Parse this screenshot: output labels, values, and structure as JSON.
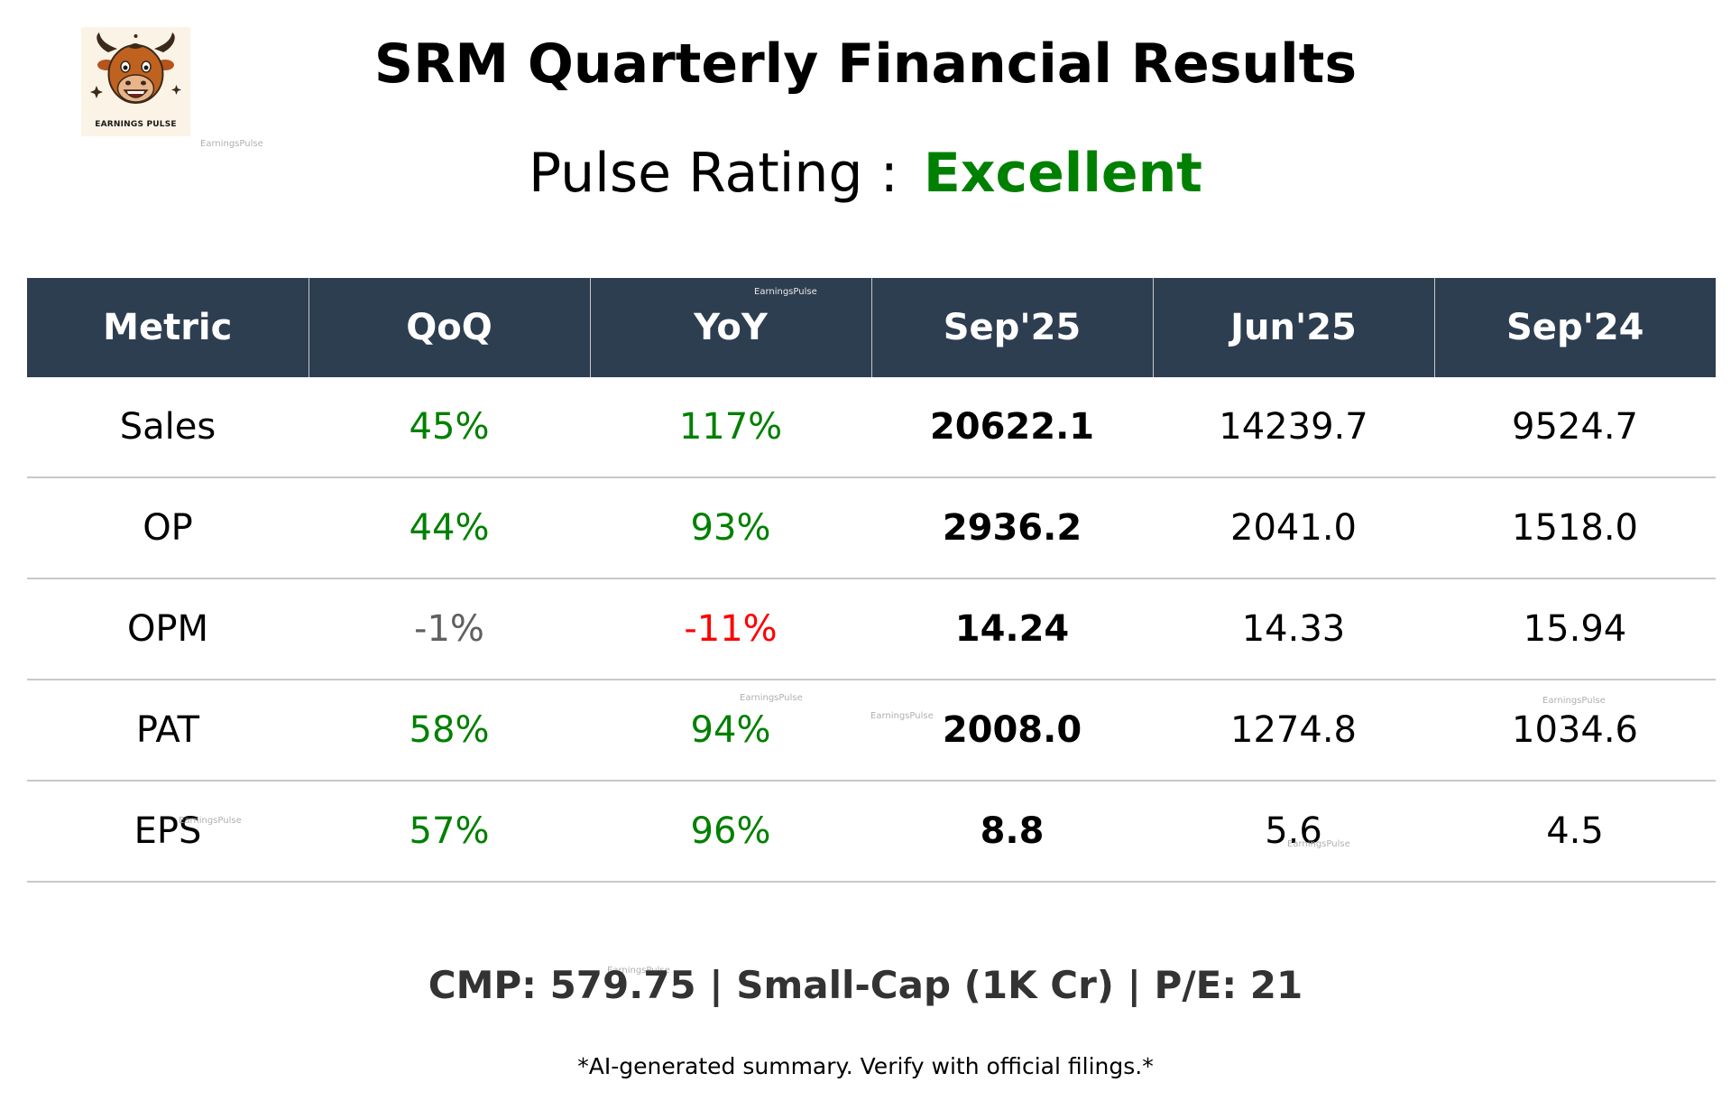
{
  "logo": {
    "text": "EARNINGS PULSE",
    "icon": "bull-mascot-icon"
  },
  "title": "SRM Quarterly Financial Results",
  "rating": {
    "label": "Pulse Rating :",
    "value": "Excellent",
    "value_color": "#008000"
  },
  "watermark_text": "EarningsPulse",
  "table": {
    "headers": [
      "Metric",
      "QoQ",
      "YoY",
      "Sep'25",
      "Jun'25",
      "Sep'24"
    ],
    "header_bg": "#2e3e51",
    "rows": [
      {
        "metric": "Sales",
        "qoq": "45%",
        "qoq_status": "green",
        "yoy": "117%",
        "yoy_status": "green",
        "current": "20622.1",
        "prev_q": "14239.7",
        "prev_y": "9524.7"
      },
      {
        "metric": "OP",
        "qoq": "44%",
        "qoq_status": "green",
        "yoy": "93%",
        "yoy_status": "green",
        "current": "2936.2",
        "prev_q": "2041.0",
        "prev_y": "1518.0"
      },
      {
        "metric": "OPM",
        "qoq": "-1%",
        "qoq_status": "gray",
        "yoy": "-11%",
        "yoy_status": "red",
        "current": "14.24",
        "prev_q": "14.33",
        "prev_y": "15.94"
      },
      {
        "metric": "PAT",
        "qoq": "58%",
        "qoq_status": "green",
        "yoy": "94%",
        "yoy_status": "green",
        "current": "2008.0",
        "prev_q": "1274.8",
        "prev_y": "1034.6"
      },
      {
        "metric": "EPS",
        "qoq": "57%",
        "qoq_status": "green",
        "yoy": "96%",
        "yoy_status": "green",
        "current": "8.8",
        "prev_q": "5.6",
        "prev_y": "4.5"
      }
    ]
  },
  "colors": {
    "positive": "#008000",
    "negative": "#ff0000",
    "neutral": "#606060"
  },
  "footer": "CMP: 579.75 | Small-Cap (1K Cr) | P/E: 21",
  "disclaimer": "*AI-generated summary. Verify with official filings.*"
}
